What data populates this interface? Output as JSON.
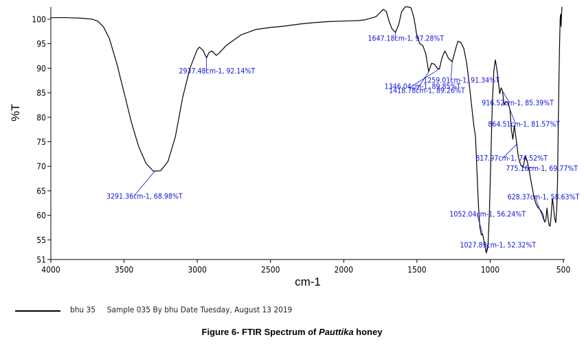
{
  "chart_data": {
    "type": "line",
    "xlabel": "cm-1",
    "ylabel": "%T",
    "xlim": [
      4000,
      500
    ],
    "ylim": [
      51,
      102.5
    ],
    "x_reversed": true,
    "x_ticks": [
      "4000",
      "3500",
      "3000",
      "2500",
      "2000",
      "1500",
      "1000",
      "500"
    ],
    "y_ticks": [
      "100",
      "95",
      "90",
      "85",
      "80",
      "75",
      "70",
      "65",
      "60",
      "55",
      "51"
    ],
    "grid": false,
    "series": [
      {
        "name": "bhu 35",
        "color": "#000000",
        "points": [
          [
            4000,
            100.3
          ],
          [
            3900,
            100.3
          ],
          [
            3800,
            100.2
          ],
          [
            3720,
            100.0
          ],
          [
            3680,
            99.6
          ],
          [
            3640,
            98.4
          ],
          [
            3600,
            96.0
          ],
          [
            3550,
            91.0
          ],
          [
            3500,
            85.0
          ],
          [
            3450,
            79.0
          ],
          [
            3400,
            74.0
          ],
          [
            3350,
            70.6
          ],
          [
            3300,
            69.0
          ],
          [
            3250,
            69.1
          ],
          [
            3200,
            71.0
          ],
          [
            3150,
            76.0
          ],
          [
            3100,
            84.0
          ],
          [
            3050,
            90.0
          ],
          [
            3000,
            93.8
          ],
          [
            2985,
            94.3
          ],
          [
            2960,
            93.6
          ],
          [
            2937,
            92.1
          ],
          [
            2920,
            93.2
          ],
          [
            2900,
            93.5
          ],
          [
            2870,
            92.6
          ],
          [
            2850,
            93.1
          ],
          [
            2800,
            94.7
          ],
          [
            2700,
            96.8
          ],
          [
            2600,
            97.9
          ],
          [
            2500,
            98.3
          ],
          [
            2400,
            98.6
          ],
          [
            2300,
            99.0
          ],
          [
            2200,
            99.3
          ],
          [
            2100,
            99.5
          ],
          [
            2000,
            99.6
          ],
          [
            1900,
            99.7
          ],
          [
            1850,
            99.9
          ],
          [
            1780,
            100.5
          ],
          [
            1730,
            102.0
          ],
          [
            1710,
            101.6
          ],
          [
            1690,
            99.5
          ],
          [
            1670,
            98.0
          ],
          [
            1647,
            97.3
          ],
          [
            1625,
            98.8
          ],
          [
            1605,
            101.5
          ],
          [
            1580,
            102.5
          ],
          [
            1560,
            102.5
          ],
          [
            1540,
            102.3
          ],
          [
            1520,
            100.2
          ],
          [
            1500,
            96.5
          ],
          [
            1480,
            95.0
          ],
          [
            1460,
            94.6
          ],
          [
            1440,
            93.0
          ],
          [
            1420,
            89.3
          ],
          [
            1400,
            91.0
          ],
          [
            1380,
            90.8
          ],
          [
            1360,
            89.9
          ],
          [
            1346,
            89.9
          ],
          [
            1330,
            92.0
          ],
          [
            1310,
            93.5
          ],
          [
            1300,
            93.0
          ],
          [
            1285,
            92.0
          ],
          [
            1259,
            91.3
          ],
          [
            1240,
            93.5
          ],
          [
            1220,
            95.5
          ],
          [
            1200,
            95.2
          ],
          [
            1180,
            94.0
          ],
          [
            1160,
            91.0
          ],
          [
            1140,
            86.0
          ],
          [
            1120,
            80.5
          ],
          [
            1110,
            78.0
          ],
          [
            1100,
            76.0
          ],
          [
            1090,
            69.0
          ],
          [
            1080,
            62.0
          ],
          [
            1070,
            57.5
          ],
          [
            1060,
            56.0
          ],
          [
            1052,
            56.2
          ],
          [
            1040,
            54.5
          ],
          [
            1027,
            52.3
          ],
          [
            1015,
            53.5
          ],
          [
            1005,
            61.0
          ],
          [
            995,
            72.0
          ],
          [
            985,
            83.0
          ],
          [
            975,
            89.5
          ],
          [
            965,
            91.7
          ],
          [
            955,
            90.0
          ],
          [
            945,
            87.5
          ],
          [
            935,
            84.8
          ],
          [
            925,
            86.0
          ],
          [
            916,
            85.4
          ],
          [
            905,
            82.5
          ],
          [
            895,
            83.2
          ],
          [
            880,
            83.0
          ],
          [
            865,
            81.6
          ],
          [
            855,
            77.5
          ],
          [
            845,
            75.5
          ],
          [
            835,
            78.3
          ],
          [
            818,
            74.5
          ],
          [
            808,
            72.0
          ],
          [
            800,
            71.0
          ],
          [
            790,
            70.2
          ],
          [
            775,
            69.8
          ],
          [
            760,
            72.2
          ],
          [
            745,
            70.8
          ],
          [
            730,
            68.5
          ],
          [
            715,
            66.0
          ],
          [
            700,
            63.5
          ],
          [
            685,
            62.2
          ],
          [
            670,
            61.5
          ],
          [
            655,
            61.0
          ],
          [
            640,
            60.2
          ],
          [
            628,
            58.6
          ],
          [
            620,
            59.0
          ],
          [
            612,
            61.5
          ],
          [
            605,
            59.5
          ],
          [
            598,
            58.0
          ],
          [
            590,
            57.8
          ],
          [
            582,
            60.5
          ],
          [
            575,
            63.5
          ],
          [
            568,
            62.0
          ],
          [
            560,
            59.5
          ],
          [
            552,
            58.5
          ],
          [
            545,
            61.5
          ],
          [
            540,
            67.0
          ],
          [
            535,
            78.0
          ],
          [
            530,
            88.0
          ],
          [
            526,
            95.0
          ],
          [
            522,
            100.0
          ],
          [
            519,
            101.0
          ],
          [
            516,
            98.5
          ],
          [
            513,
            100.5
          ],
          [
            510,
            102.5
          ]
        ]
      }
    ],
    "annotations": [
      {
        "text": "3291.36cm-1, 68.98%T",
        "x": 3291.36,
        "y": 68.98
      },
      {
        "text": "2937.48cm-1, 92.14%T",
        "x": 2937.48,
        "y": 92.14
      },
      {
        "text": "1647.18cm-1, 97.28%T",
        "x": 1647.18,
        "y": 97.28
      },
      {
        "text": "1259.01cm-1, 91.34%T",
        "x": 1259.01,
        "y": 91.34
      },
      {
        "text": "1418.78cm-1, 89.26%T",
        "x": 1418.78,
        "y": 89.26
      },
      {
        "text": "1346.04cm-1, 89.85%T",
        "x": 1346.04,
        "y": 89.85
      },
      {
        "text": "916.52cm-1, 85.39%T",
        "x": 916.52,
        "y": 85.39
      },
      {
        "text": "864.51cm-1, 81.57%T",
        "x": 864.51,
        "y": 81.57
      },
      {
        "text": "775.16cm-1, 69.77%T",
        "x": 775.16,
        "y": 69.77
      },
      {
        "text": "817.97cm-1, 74.52%T",
        "x": 817.97,
        "y": 74.52
      },
      {
        "text": "628.37cm-1, 58.63%T",
        "x": 628.37,
        "y": 58.63
      },
      {
        "text": "1052.04cm-1, 56.24%T",
        "x": 1052.04,
        "y": 56.24
      },
      {
        "text": "1027.89cm-1, 52.32%T",
        "x": 1027.89,
        "y": 52.32
      }
    ]
  },
  "legend": {
    "text": "bhu 35     Sample 035 By bhu Date Tuesday, August 13 2019"
  },
  "caption": {
    "prefix": "Figure 6- FTIR Spectrum of ",
    "italic": "Pauttika",
    "suffix": " honey"
  }
}
